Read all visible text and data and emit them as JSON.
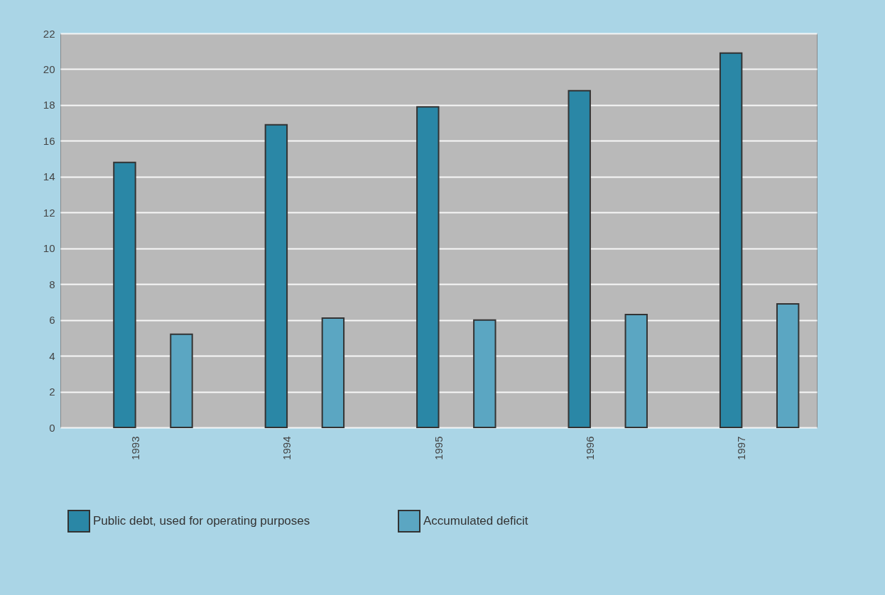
{
  "chart_data": {
    "type": "bar",
    "categories": [
      "1993",
      "1994",
      "1995",
      "1996",
      "1997"
    ],
    "series": [
      {
        "name": "Public debt, used for operating purposes",
        "color": "#2a87a6",
        "values": [
          14.8,
          16.9,
          17.9,
          18.8,
          20.9
        ]
      },
      {
        "name": "Accumulated deficit",
        "color": "#5ba6c2",
        "values": [
          5.2,
          6.1,
          6.0,
          6.3,
          6.9
        ]
      }
    ],
    "ylim": [
      0,
      22
    ],
    "yticks": [
      0,
      2,
      4,
      6,
      8,
      10,
      12,
      14,
      16,
      18,
      20,
      22
    ],
    "grid": "y",
    "legend": "bottom"
  }
}
